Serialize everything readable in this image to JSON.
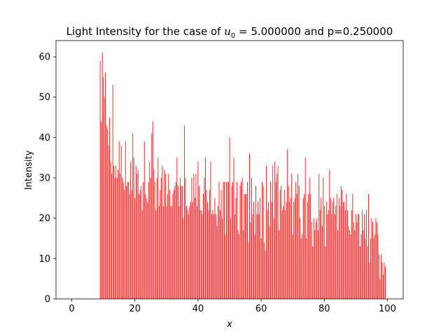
{
  "chart_data": {
    "type": "bar",
    "title": "Light Intensity for the case of u0 = 5.000000 and p=0.250000",
    "title_parts": {
      "prefix": "Light Intensity for the case of ",
      "var": "u",
      "sub": "0",
      "suffix": " = 5.000000 and p=0.250000"
    },
    "xlabel": "x",
    "ylabel": "Intensity",
    "xlim": [
      -5,
      105
    ],
    "ylim": [
      0,
      64
    ],
    "xticks": [
      0,
      20,
      40,
      60,
      80,
      100
    ],
    "yticks": [
      0,
      10,
      20,
      30,
      40,
      50,
      60
    ],
    "bar_color": "#ff0000",
    "x_start": 9,
    "values": [
      59,
      44,
      61,
      55,
      50,
      56,
      43,
      42,
      38,
      45,
      34,
      31,
      53,
      33,
      30,
      33,
      30,
      32,
      39,
      31,
      38,
      30,
      29,
      27,
      39,
      28,
      29,
      29,
      26,
      34,
      27,
      41,
      35,
      25,
      33,
      31,
      32,
      26,
      27,
      28,
      22,
      29,
      39,
      26,
      25,
      24,
      29,
      34,
      30,
      41,
      44,
      32,
      29,
      22,
      30,
      35,
      23,
      27,
      30,
      33,
      23,
      32,
      31,
      23,
      26,
      31,
      27,
      23,
      23,
      26,
      27,
      28,
      29,
      35,
      28,
      23,
      30,
      28,
      28,
      20,
      43,
      30,
      23,
      22,
      21,
      23,
      24,
      30,
      24,
      31,
      25,
      31,
      23,
      34,
      28,
      22,
      22,
      21,
      26,
      30,
      35,
      27,
      24,
      22,
      27,
      34,
      21,
      22,
      21,
      25,
      21,
      18,
      23,
      29,
      22,
      27,
      20,
      29,
      29,
      16,
      29,
      29,
      29,
      40,
      20,
      28,
      29,
      35,
      21,
      25,
      29,
      17,
      16,
      28,
      29,
      30,
      17,
      26,
      26,
      26,
      29,
      14,
      36,
      19,
      30,
      21,
      24,
      16,
      28,
      21,
      24,
      21,
      25,
      15,
      29,
      28,
      14,
      12,
      33,
      22,
      24,
      18,
      29,
      24,
      33,
      20,
      34,
      29,
      31,
      33,
      17,
      27,
      28,
      22,
      23,
      27,
      22,
      24,
      37,
      28,
      24,
      25,
      31,
      16,
      24,
      25,
      29,
      26,
      31,
      28,
      20,
      15,
      16,
      25,
      26,
      35,
      15,
      24,
      26,
      30,
      26,
      19,
      13,
      20,
      17,
      19,
      20,
      17,
      31,
      22,
      25,
      18,
      30,
      23,
      13,
      24,
      21,
      22,
      32,
      25,
      21,
      24,
      25,
      21,
      23,
      26,
      17,
      25,
      23,
      28,
      27,
      24,
      24,
      22,
      26,
      22,
      18,
      17,
      16,
      22,
      26,
      19,
      17,
      21,
      19,
      21,
      21,
      13,
      16,
      22,
      17,
      21,
      15,
      22,
      13,
      26,
      9,
      15,
      20,
      19,
      15,
      16,
      20,
      19,
      16,
      11,
      5,
      11,
      9,
      6,
      9,
      8
    ]
  }
}
